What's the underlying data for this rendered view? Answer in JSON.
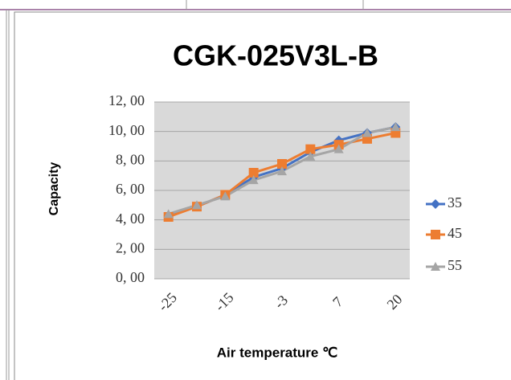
{
  "chart_data": {
    "type": "line",
    "title": "CGK-025V3L-B",
    "x_label": "Air temperature ℃",
    "y_label": "Capacity",
    "categories": [
      "-25",
      null,
      "-15",
      null,
      "-3",
      null,
      "7",
      null,
      "20"
    ],
    "series": [
      {
        "name": "35",
        "color": "#4472c4",
        "marker": "diamond",
        "values": [
          4.3,
          4.9,
          5.7,
          6.9,
          7.5,
          8.6,
          9.4,
          9.9,
          10.3
        ]
      },
      {
        "name": "45",
        "color": "#ed7d31",
        "marker": "square",
        "values": [
          4.2,
          4.9,
          5.7,
          7.2,
          7.8,
          8.8,
          9.1,
          9.5,
          9.9
        ]
      },
      {
        "name": "55",
        "color": "#a5a5a5",
        "marker": "triangle",
        "values": [
          4.4,
          5.0,
          5.6,
          6.7,
          7.3,
          8.3,
          8.8,
          9.9,
          10.3
        ]
      }
    ],
    "ylim": [
      0,
      12
    ],
    "yticks": [
      {
        "value": 0,
        "label": "0, 00"
      },
      {
        "value": 2,
        "label": "2, 00"
      },
      {
        "value": 4,
        "label": "4, 00"
      },
      {
        "value": 6,
        "label": "6, 00"
      },
      {
        "value": 8,
        "label": "8, 00"
      },
      {
        "value": 10,
        "label": "10, 00"
      },
      {
        "value": 12,
        "label": "12, 00"
      }
    ],
    "grid": true,
    "legend": "right"
  }
}
